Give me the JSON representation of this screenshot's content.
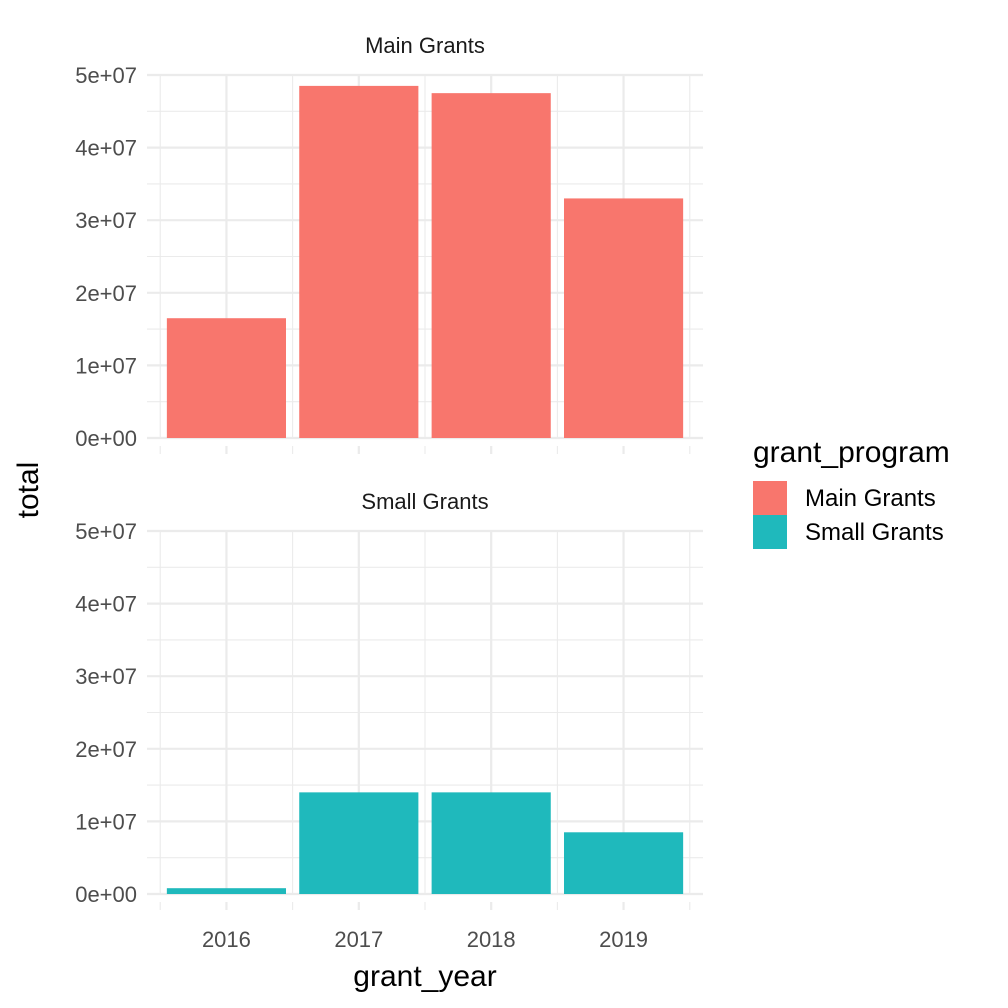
{
  "chart_data": {
    "type": "bar",
    "facet_by": "grant_program",
    "categories": [
      "2016",
      "2017",
      "2018",
      "2019"
    ],
    "xlabel": "grant_year",
    "ylabel": "total",
    "ylim": [
      0,
      50000000
    ],
    "y_ticks": [
      0,
      10000000,
      20000000,
      30000000,
      40000000,
      50000000
    ],
    "y_tick_labels": [
      "0e+00",
      "1e+07",
      "2e+07",
      "3e+07",
      "4e+07",
      "5e+07"
    ],
    "grid": true,
    "legend": {
      "title": "grant_program",
      "position": "right",
      "entries": [
        "Main Grants",
        "Small Grants"
      ]
    },
    "series": [
      {
        "name": "Main Grants",
        "color": "#F8766D",
        "values": [
          16500000,
          48500000,
          47500000,
          33000000
        ]
      },
      {
        "name": "Small Grants",
        "color": "#1FB9BC",
        "values": [
          800000,
          14000000,
          14000000,
          8500000
        ]
      }
    ]
  }
}
